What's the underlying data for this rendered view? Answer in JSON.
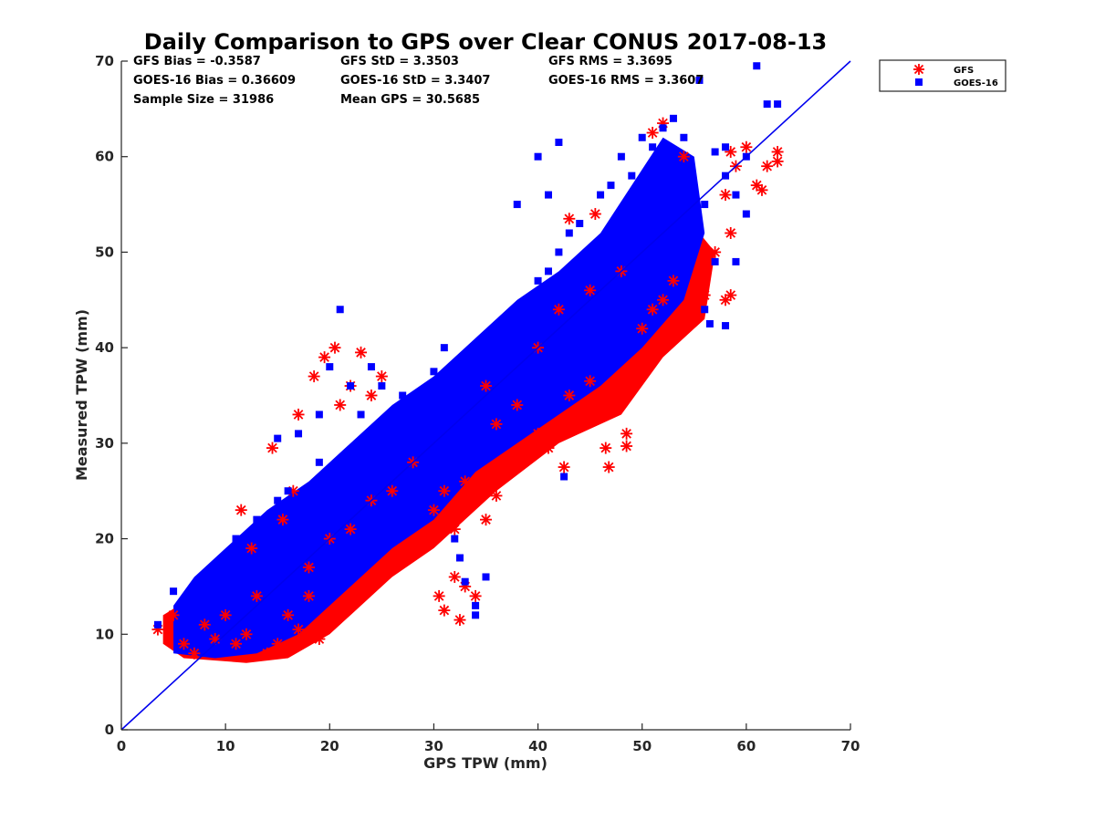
{
  "chart_data": {
    "type": "scatter",
    "title": "Daily Comparison to GPS over Clear CONUS 2017-08-13",
    "xlabel": "GPS TPW (mm)",
    "ylabel": "Measured TPW (mm)",
    "xlim": [
      0,
      70
    ],
    "ylim": [
      0,
      70
    ],
    "xticks": [
      "0",
      "10",
      "20",
      "30",
      "40",
      "50",
      "60",
      "70"
    ],
    "yticks": [
      "0",
      "10",
      "20",
      "30",
      "40",
      "50",
      "60",
      "70"
    ],
    "grid": false,
    "legend_position": "outside-top-right",
    "reference_line": {
      "name": "1:1 line",
      "x": [
        0,
        70
      ],
      "y": [
        0,
        70
      ],
      "color": "#0000ee"
    },
    "stats": {
      "gfs_bias": "GFS Bias = -0.3587",
      "gfs_std": "GFS StD = 3.3503",
      "gfs_rms": "GFS RMS = 3.3695",
      "goes_bias": "GOES-16 Bias = 0.36609",
      "goes_std": "GOES-16 StD = 3.3407",
      "goes_rms": "GOES-16 RMS = 3.3607",
      "sample_size": "Sample Size = 31986",
      "mean_gps": "Mean GPS = 30.5685"
    },
    "series": [
      {
        "name": "GFS",
        "marker": "asterisk",
        "color": "#ff0000",
        "points": [
          [
            3.5,
            10.5
          ],
          [
            5,
            12
          ],
          [
            6,
            9
          ],
          [
            7,
            8
          ],
          [
            8,
            11
          ],
          [
            9,
            9.5
          ],
          [
            10,
            12
          ],
          [
            11,
            9
          ],
          [
            12,
            10
          ],
          [
            13,
            14
          ],
          [
            14,
            8
          ],
          [
            15,
            9
          ],
          [
            16,
            12
          ],
          [
            17,
            10.5
          ],
          [
            18,
            14
          ],
          [
            19,
            9.5
          ],
          [
            11.5,
            23
          ],
          [
            12.5,
            19
          ],
          [
            14.5,
            29.5
          ],
          [
            15.5,
            22
          ],
          [
            16.5,
            25
          ],
          [
            17,
            33
          ],
          [
            18.5,
            37
          ],
          [
            19.5,
            39
          ],
          [
            20.5,
            40
          ],
          [
            21,
            34
          ],
          [
            22,
            36
          ],
          [
            23,
            39.5
          ],
          [
            24,
            35
          ],
          [
            25,
            37
          ],
          [
            18,
            17
          ],
          [
            20,
            20
          ],
          [
            22,
            21
          ],
          [
            24,
            24
          ],
          [
            25.5,
            17
          ],
          [
            26,
            25
          ],
          [
            27,
            19
          ],
          [
            28,
            28
          ],
          [
            29,
            19.5
          ],
          [
            30,
            23
          ],
          [
            31,
            25
          ],
          [
            32,
            21
          ],
          [
            33,
            26
          ],
          [
            34,
            24.5
          ],
          [
            30.5,
            14
          ],
          [
            31,
            12.5
          ],
          [
            32,
            16
          ],
          [
            32.5,
            11.5
          ],
          [
            33,
            15
          ],
          [
            34,
            14
          ],
          [
            35,
            22
          ],
          [
            36,
            24.5
          ],
          [
            37,
            28
          ],
          [
            38,
            27.5
          ],
          [
            36,
            32
          ],
          [
            38,
            34
          ],
          [
            40,
            31
          ],
          [
            41,
            29.5
          ],
          [
            42,
            32
          ],
          [
            42.5,
            27.5
          ],
          [
            43,
            35
          ],
          [
            44,
            33
          ],
          [
            45,
            36.5
          ],
          [
            46,
            33
          ],
          [
            46.5,
            29.5
          ],
          [
            46.8,
            27.5
          ],
          [
            47,
            36
          ],
          [
            48,
            37
          ],
          [
            48.5,
            31
          ],
          [
            48.5,
            29.7
          ],
          [
            49,
            38
          ],
          [
            50,
            38
          ],
          [
            35,
            36
          ],
          [
            40,
            40
          ],
          [
            42,
            44
          ],
          [
            45,
            46
          ],
          [
            48,
            48
          ],
          [
            50,
            42
          ],
          [
            51,
            44
          ],
          [
            52,
            45
          ],
          [
            53,
            47
          ],
          [
            54,
            42.5
          ],
          [
            43,
            53.5
          ],
          [
            45.5,
            54
          ],
          [
            51,
            62.5
          ],
          [
            52,
            63.5
          ],
          [
            54,
            60
          ],
          [
            56,
            45.5
          ],
          [
            57,
            50
          ],
          [
            58,
            45
          ],
          [
            58.5,
            45.5
          ],
          [
            58,
            56
          ],
          [
            58.5,
            60.5
          ],
          [
            59,
            59
          ],
          [
            60,
            61
          ],
          [
            61,
            57
          ],
          [
            61.5,
            56.5
          ],
          [
            62,
            59
          ],
          [
            63,
            59.5
          ],
          [
            63,
            60.5
          ],
          [
            58.5,
            52
          ]
        ]
      },
      {
        "name": "GOES-16",
        "marker": "square",
        "color": "#0000ff",
        "points": [
          [
            3.5,
            11
          ],
          [
            5,
            14.5
          ],
          [
            6,
            12.5
          ],
          [
            7,
            14
          ],
          [
            8,
            9
          ],
          [
            9,
            17
          ],
          [
            10,
            13
          ],
          [
            11,
            20
          ],
          [
            12,
            16
          ],
          [
            13,
            22
          ],
          [
            14,
            18
          ],
          [
            15,
            30.5
          ],
          [
            16,
            25
          ],
          [
            17,
            21
          ],
          [
            18,
            23
          ],
          [
            19,
            28
          ],
          [
            15,
            24
          ],
          [
            17,
            31
          ],
          [
            19,
            33
          ],
          [
            20,
            38
          ],
          [
            21,
            44
          ],
          [
            22,
            36
          ],
          [
            23,
            33
          ],
          [
            24,
            38
          ],
          [
            25,
            36
          ],
          [
            26,
            32
          ],
          [
            27,
            35
          ],
          [
            28,
            31
          ],
          [
            29,
            34
          ],
          [
            30,
            37.5
          ],
          [
            31,
            40
          ],
          [
            27,
            29
          ],
          [
            29,
            31
          ],
          [
            31,
            33
          ],
          [
            32,
            34
          ],
          [
            33,
            36
          ],
          [
            34,
            38
          ],
          [
            35,
            39
          ],
          [
            36,
            41
          ],
          [
            37,
            42
          ],
          [
            38,
            44
          ],
          [
            39,
            45
          ],
          [
            40,
            47
          ],
          [
            41,
            48
          ],
          [
            42,
            50
          ],
          [
            43,
            52
          ],
          [
            44,
            53
          ],
          [
            32,
            20
          ],
          [
            32.5,
            18
          ],
          [
            33,
            15.5
          ],
          [
            34,
            13
          ],
          [
            34,
            12
          ],
          [
            35,
            16
          ],
          [
            42.5,
            26.5
          ],
          [
            38,
            55
          ],
          [
            40,
            60
          ],
          [
            41,
            56
          ],
          [
            42,
            61.5
          ],
          [
            44,
            48
          ],
          [
            46,
            56
          ],
          [
            47,
            57
          ],
          [
            48,
            60
          ],
          [
            49,
            58
          ],
          [
            50,
            62
          ],
          [
            51,
            61
          ],
          [
            52,
            63
          ],
          [
            53,
            64
          ],
          [
            54,
            59
          ],
          [
            55,
            56
          ],
          [
            56,
            44
          ],
          [
            56.5,
            42.5
          ],
          [
            57,
            49
          ],
          [
            58,
            42.3
          ],
          [
            59,
            49
          ],
          [
            60,
            54
          ],
          [
            61,
            69.5
          ],
          [
            62,
            65.5
          ],
          [
            63,
            65.5
          ],
          [
            58,
            61
          ],
          [
            55.5,
            68
          ],
          [
            54,
            62
          ],
          [
            53,
            55
          ],
          [
            25,
            27
          ],
          [
            33,
            31
          ],
          [
            45,
            42
          ],
          [
            48,
            45
          ],
          [
            50,
            52
          ],
          [
            52,
            53
          ],
          [
            54,
            51
          ],
          [
            55,
            52
          ],
          [
            56,
            55
          ],
          [
            57,
            60.5
          ],
          [
            58,
            58
          ],
          [
            59,
            56
          ],
          [
            60,
            60
          ]
        ]
      }
    ]
  }
}
